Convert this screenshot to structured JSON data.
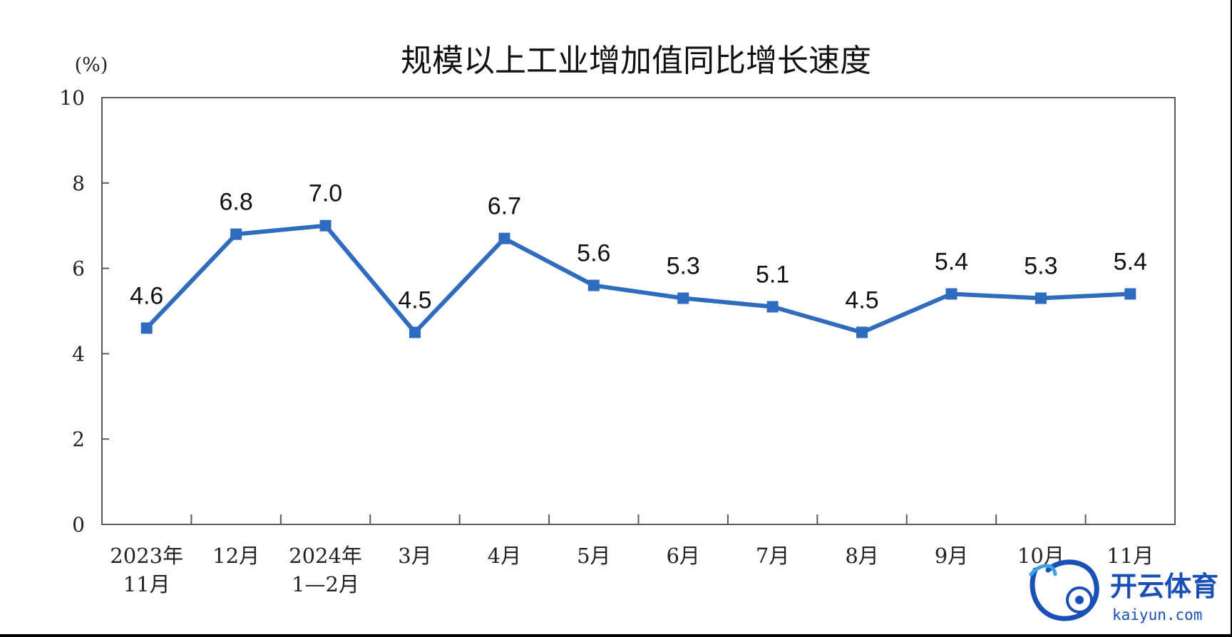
{
  "chart_data": {
    "type": "line",
    "title": "规模以上工业增加值同比增长速度",
    "unit_label": "(%)",
    "ylim": [
      0,
      10
    ],
    "yticks": [
      "0",
      "2",
      "4",
      "6",
      "8",
      "10"
    ],
    "categories": [
      [
        "2023年",
        "11月"
      ],
      [
        "12月"
      ],
      [
        "2024年",
        "1—2月"
      ],
      [
        "3月"
      ],
      [
        "4月"
      ],
      [
        "5月"
      ],
      [
        "6月"
      ],
      [
        "7月"
      ],
      [
        "8月"
      ],
      [
        "9月"
      ],
      [
        "10月"
      ],
      [
        "11月"
      ]
    ],
    "series": [
      {
        "values": [
          4.6,
          6.8,
          7.0,
          4.5,
          6.7,
          5.6,
          5.3,
          5.1,
          4.5,
          5.4,
          5.3,
          5.4
        ],
        "data_labels": [
          "4.6",
          "6.8",
          "7.0",
          "4.5",
          "6.7",
          "5.6",
          "5.3",
          "5.1",
          "4.5",
          "5.4",
          "5.3",
          "5.4"
        ],
        "color": "#2f6bbf"
      }
    ],
    "grid": false,
    "legend": "none",
    "marker": "square"
  },
  "watermark": {
    "main": "开云体育",
    "sub": "kaiyun.com",
    "color": "#1a4fb8",
    "icon": "kaiyun-logo-icon"
  }
}
